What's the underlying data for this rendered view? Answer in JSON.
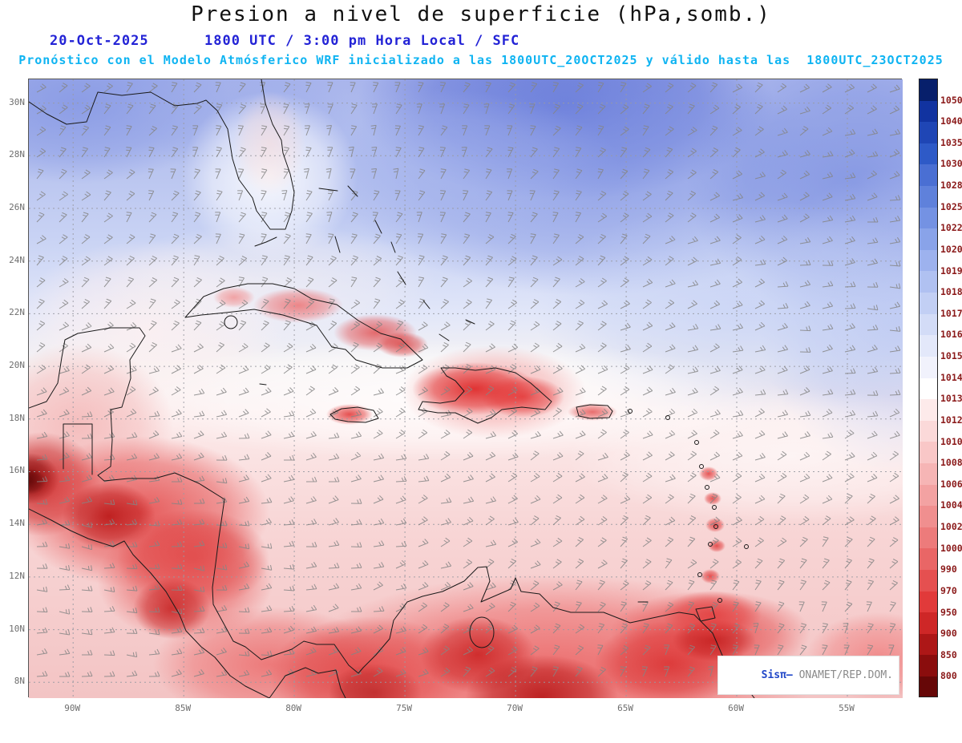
{
  "header": {
    "title": "Presion a nivel de superficie (hPa,somb.)",
    "date": "20-Oct-2025",
    "time_line": "1800 UTC / 3:00 pm Hora Local / SFC",
    "forecast_line": "Pronóstico con el Modelo Atmósferico WRF inicializado a las 1800UTC_20OCT2025 y válido hasta las  1800UTC_23OCT2025"
  },
  "watermark": {
    "brand": "Sisπ– ",
    "org": "ONAMET/REP.DOM."
  },
  "chart_data": {
    "type": "heatmap",
    "title": "Presion a nivel de superficie (hPa,somb.)",
    "units": "hPa",
    "model": "WRF",
    "init_time": "1800UTC_20OCT2025",
    "valid_time": "1800UTC_23OCT2025",
    "region": "Caribbean / Gulf of Mexico / Central America",
    "lat_ticks": [
      "30N",
      "28N",
      "26N",
      "24N",
      "22N",
      "20N",
      "18N",
      "16N",
      "14N",
      "12N",
      "10N",
      "8N"
    ],
    "lon_ticks": [
      "90W",
      "85W",
      "80W",
      "75W",
      "70W",
      "65W",
      "60W",
      "55W"
    ],
    "lat_range": [
      7.4,
      30.9
    ],
    "lon_range": [
      -92,
      -52.5
    ],
    "colorbar_levels": [
      1050,
      1040,
      1035,
      1030,
      1028,
      1025,
      1022,
      1020,
      1019,
      1018,
      1017,
      1016,
      1015,
      1014,
      1013,
      1012,
      1010,
      1008,
      1006,
      1004,
      1002,
      1000,
      990,
      970,
      950,
      900,
      850,
      800
    ],
    "colorbar_colors": [
      "#071f6b",
      "#1133a0",
      "#1f46b5",
      "#2e5ac7",
      "#4a6fd3",
      "#5f81db",
      "#7492e3",
      "#89a3e9",
      "#9db2ee",
      "#b0c1f1",
      "#c2cff4",
      "#d3dcf7",
      "#e3e8fa",
      "#f1f2fc",
      "#ffffff",
      "#fdeaea",
      "#fbd9d9",
      "#f9c7c7",
      "#f6b5b5",
      "#f3a2a2",
      "#f08f8f",
      "#ed7b7b",
      "#e96666",
      "#e55050",
      "#e13a3a",
      "#ce2727",
      "#ad1717",
      "#8a0d0d",
      "#660707"
    ],
    "shading_summary": "High pressure (blue, ~1016-1022 hPa) across the north Atlantic/Gulf; near-1013 white band ~18-20N; lower pressure (pink/red, <=1012 hPa) over Central America, Hispaniola, Cuba interior and northern South America"
  }
}
